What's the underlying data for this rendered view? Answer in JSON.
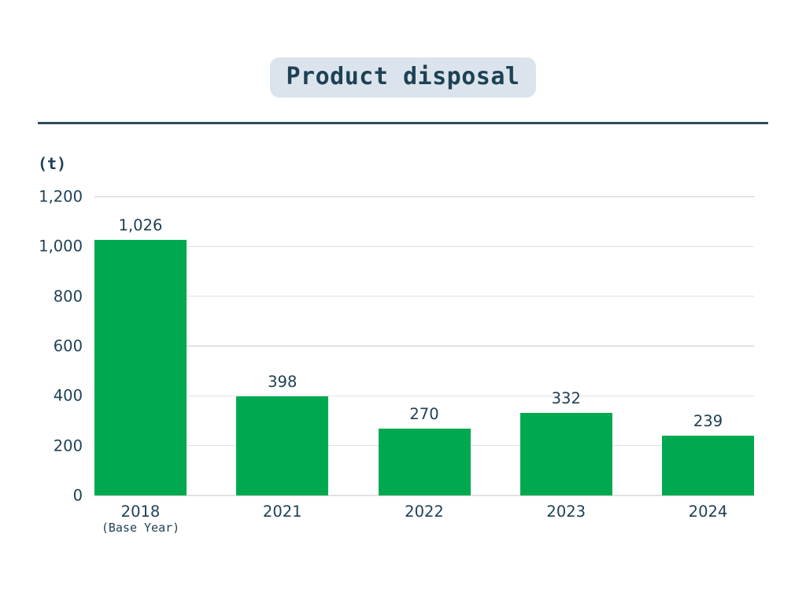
{
  "title": {
    "text": "Product disposal",
    "bg_color": "#dbe4ec",
    "text_color": "#1e4155"
  },
  "divider_color": "#2b4c5d",
  "chart_data": {
    "type": "bar",
    "title": "Product disposal",
    "unit_label": "(t)",
    "categories": [
      "2018",
      "2021",
      "2022",
      "2023",
      "2024"
    ],
    "category_sublabels": [
      "(Base Year)",
      "",
      "",
      "",
      ""
    ],
    "values": [
      1026,
      398,
      270,
      332,
      239
    ],
    "value_labels": [
      "1,026",
      "398",
      "270",
      "332",
      "239"
    ],
    "yticks": [
      0,
      200,
      400,
      600,
      800,
      1000,
      1200
    ],
    "ytick_labels": [
      "0",
      "200",
      "400",
      "600",
      "800",
      "1,000",
      "1,200"
    ],
    "ylim": [
      0,
      1200
    ],
    "grid": true,
    "legend": false,
    "bar_color": "#00a94f",
    "grid_color": "#e2e2e2",
    "text_color": "#1e4155"
  }
}
